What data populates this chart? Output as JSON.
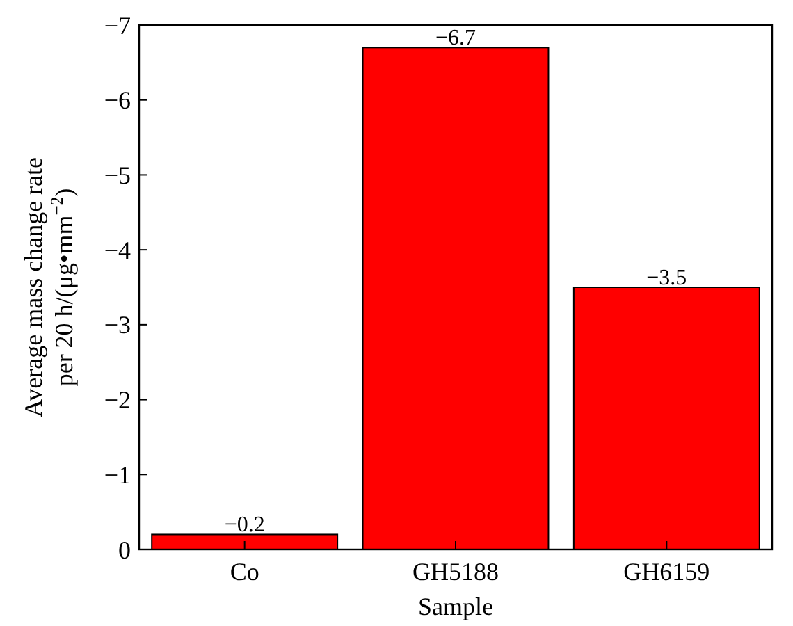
{
  "chart_data": {
    "type": "bar",
    "xlabel": "Sample",
    "ylabel": "Average mass change rate\nper 20 h/(μg•mm$^{−2}$)",
    "categories": [
      "Co",
      "GH5188",
      "GH6159"
    ],
    "values": [
      -0.2,
      -6.7,
      -3.5
    ],
    "value_labels": [
      "−0.2",
      "−6.7",
      "−3.5"
    ],
    "color": "#ff0000",
    "ylim": [
      0,
      -7
    ],
    "yticks": [
      0,
      {
        "value": -1,
        "label": "−1"
      },
      {
        "value": -2,
        "label": "−2"
      },
      {
        "value": -3,
        "label": "−3"
      },
      {
        "value": -4,
        "label": "−4"
      },
      {
        "value": -5,
        "label": "−5"
      },
      {
        "value": -6,
        "label": "−6"
      },
      {
        "value": -7,
        "label": "−7"
      }
    ],
    "grid": false
  }
}
